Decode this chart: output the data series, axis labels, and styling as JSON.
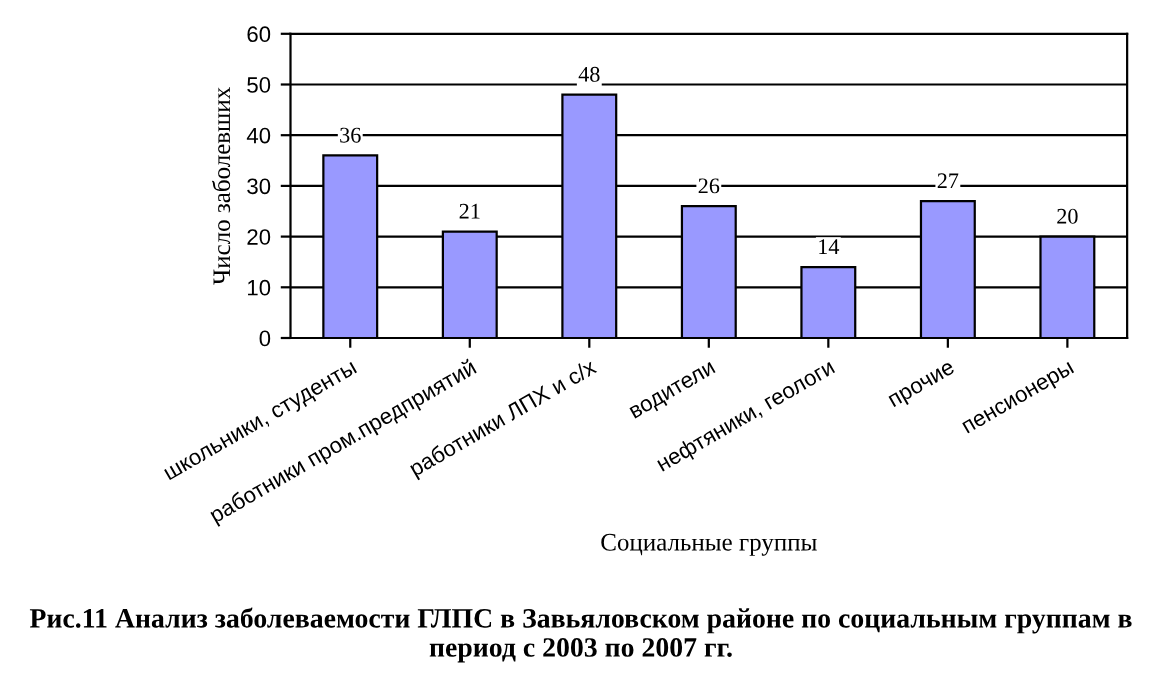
{
  "chart_data": {
    "type": "bar",
    "title": "Рис.11 Анализ заболеваемости ГЛПС в Завьяловском районе по социальным группам в период с 2003 по 2007 гг.",
    "xlabel": "Социальные группы",
    "ylabel": "Число заболевших",
    "categories": [
      "школьники, студенты",
      "работники пром.предприятий",
      "работники ЛПХ и с/х",
      "водители",
      "нефтяники, геологи",
      "прочие",
      "пенсионеры"
    ],
    "values": [
      36,
      21,
      48,
      26,
      14,
      27,
      20
    ],
    "color": "#9999ff",
    "ylim": [
      0,
      60
    ],
    "yticks": [
      0,
      10,
      20,
      30,
      40,
      50,
      60
    ],
    "grid": "y",
    "data_labels": true
  }
}
